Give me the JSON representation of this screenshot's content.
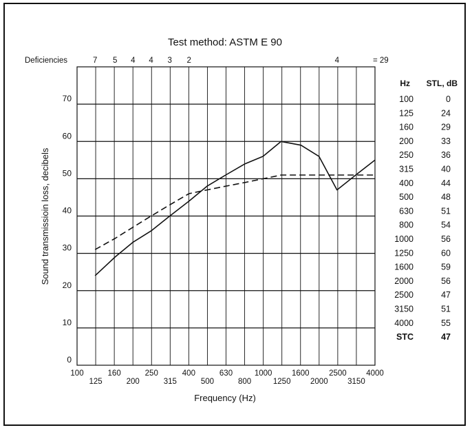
{
  "chart_data": {
    "type": "line",
    "title": "Test method: ASTM E 90",
    "xlabel": "Frequency (Hz)",
    "ylabel": "Sound transmissioin loss, decibels",
    "x_scale": "log",
    "x_bands": [
      "100",
      "125",
      "160",
      "200",
      "250",
      "315",
      "400",
      "500",
      "630",
      "800",
      "1000",
      "1250",
      "1600",
      "2000",
      "2500",
      "3150",
      "4000"
    ],
    "xlim": [
      100,
      4000
    ],
    "ylim": [
      0,
      80
    ],
    "yticks": [
      0,
      10,
      20,
      30,
      40,
      50,
      60,
      70
    ],
    "grid": true,
    "series": [
      {
        "style": "solid",
        "x": [
          125,
          160,
          200,
          250,
          315,
          400,
          500,
          630,
          800,
          1000,
          1250,
          1600,
          2000,
          2500,
          3150,
          4000
        ],
        "values": [
          24,
          29,
          33,
          36,
          40,
          44,
          48,
          51,
          54,
          56,
          60,
          59,
          56,
          47,
          51,
          55
        ]
      },
      {
        "style": "dashed",
        "x": [
          125,
          160,
          200,
          250,
          315,
          400,
          500,
          630,
          800,
          1000,
          1250,
          1600,
          2000,
          2500,
          3150,
          4000
        ],
        "values": [
          31,
          34,
          37,
          40,
          43,
          46,
          47,
          48,
          49,
          50,
          51,
          51,
          51,
          51,
          51,
          51
        ]
      }
    ],
    "deficiencies": {
      "label": "Deficiencies",
      "items": [
        {
          "x": 125,
          "value": "7"
        },
        {
          "x": 160,
          "value": "5"
        },
        {
          "x": 200,
          "value": "4"
        },
        {
          "x": 250,
          "value": "4"
        },
        {
          "x": 315,
          "value": "3"
        },
        {
          "x": 400,
          "value": "2"
        },
        {
          "x": 2500,
          "value": "4"
        }
      ],
      "total": "= 29"
    },
    "stl_table": {
      "headers": [
        "Hz",
        "STL, dB"
      ],
      "rows": [
        [
          "100",
          "0"
        ],
        [
          "125",
          "24"
        ],
        [
          "160",
          "29"
        ],
        [
          "200",
          "33"
        ],
        [
          "250",
          "36"
        ],
        [
          "315",
          "40"
        ],
        [
          "400",
          "44"
        ],
        [
          "500",
          "48"
        ],
        [
          "630",
          "51"
        ],
        [
          "800",
          "54"
        ],
        [
          "1000",
          "56"
        ],
        [
          "1250",
          "60"
        ],
        [
          "1600",
          "59"
        ],
        [
          "2000",
          "56"
        ],
        [
          "2500",
          "47"
        ],
        [
          "3150",
          "51"
        ],
        [
          "4000",
          "55"
        ]
      ],
      "stc_label": "STC",
      "stc_value": "47"
    }
  }
}
